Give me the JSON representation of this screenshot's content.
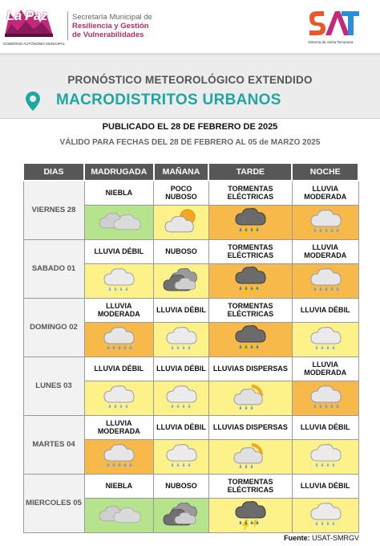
{
  "header": {
    "lapaz_logo_text": "La Paz",
    "lapaz_logo_sub": "GOBIERNO AUTÓNOMO MUNICIPAL",
    "secretaria_line1": "Secretaría Municipal de",
    "secretaria_line2": "Resiliencia y Gestión",
    "secretaria_line3": "de Vulnerabilidades",
    "sat_logo_sub": "Sistema de Alerta Temprana"
  },
  "title": "PRONÓSTICO METEOROLÓGICO EXTENDIDO",
  "subtitle": "MACRODISTRITOS URBANOS",
  "published": "PUBLICADO EL 28 DE FEBRERO DE 2025",
  "valid": "VÁLIDO PARA FECHAS DEL 28  DE FEBRERO AL 05 de MARZO 2025",
  "table": {
    "headers": [
      "DIAS",
      "MADRUGADA",
      "MAÑANA",
      "TARDE",
      "NOCHE"
    ],
    "rows": [
      {
        "day": "VIERNES 28",
        "cells": [
          {
            "label": "NIEBLA",
            "icon": "fog-icon",
            "color": "green"
          },
          {
            "label": "POCO NUBOSO",
            "icon": "partly-cloudy-icon",
            "color": "yellow"
          },
          {
            "label": "TORMENTAS ELÉCTRICAS",
            "icon": "thunderstorm-icon",
            "color": "orange"
          },
          {
            "label": "LLUVIA MODERADA",
            "icon": "rain-icon",
            "color": "orange"
          }
        ]
      },
      {
        "day": "SABADO 01",
        "cells": [
          {
            "label": "LLUVIA DÉBIL",
            "icon": "light-rain-icon",
            "color": "yellow"
          },
          {
            "label": "NUBOSO",
            "icon": "cloudy-icon",
            "color": "yellow"
          },
          {
            "label": "TORMENTAS ELÉCTRICAS",
            "icon": "thunderstorm-icon",
            "color": "orange"
          },
          {
            "label": "LLUVIA MODERADA",
            "icon": "rain-icon",
            "color": "orange"
          }
        ]
      },
      {
        "day": "DOMINGO 02",
        "cells": [
          {
            "label": "LLUVIA MODERADA",
            "icon": "rain-icon",
            "color": "orange"
          },
          {
            "label": "LLUVIA DÉBIL",
            "icon": "light-rain-icon",
            "color": "yellow"
          },
          {
            "label": "TORMENTAS ELÉCTRICAS",
            "icon": "thunderstorm-icon",
            "color": "orange"
          },
          {
            "label": "LLUVIA DÉBIL",
            "icon": "light-rain-icon",
            "color": "yellow"
          }
        ]
      },
      {
        "day": "LUNES 03",
        "cells": [
          {
            "label": "LLUVIA DÉBIL",
            "icon": "light-rain-icon",
            "color": "yellow"
          },
          {
            "label": "LLUVIA DÉBIL",
            "icon": "light-rain-icon",
            "color": "yellow"
          },
          {
            "label": "LLUVIAS DISPERSAS",
            "icon": "scattered-rain-icon",
            "color": "yellow"
          },
          {
            "label": "LLUVIA MODERADA",
            "icon": "rain-icon",
            "color": "orange"
          }
        ]
      },
      {
        "day": "MARTES 04",
        "cells": [
          {
            "label": "LLUVIA MODERADA",
            "icon": "rain-icon",
            "color": "orange"
          },
          {
            "label": "LLUVIA DÉBIL",
            "icon": "light-rain-icon",
            "color": "yellow"
          },
          {
            "label": "LLUVIAS DISPERSAS",
            "icon": "scattered-rain-icon",
            "color": "yellow"
          },
          {
            "label": "LLUVIA DÉBIL",
            "icon": "light-rain-icon",
            "color": "yellow"
          }
        ]
      },
      {
        "day": "MIERCOLES 05",
        "cells": [
          {
            "label": "NIEBLA",
            "icon": "fog-icon",
            "color": "green"
          },
          {
            "label": "NUBOSO",
            "icon": "cloudy-icon",
            "color": "green"
          },
          {
            "label": "TORMENTAS ELÉCTRICAS",
            "icon": "thunderstorm-icon",
            "color": "yellow"
          },
          {
            "label": "LLUVIA DÉBIL",
            "icon": "light-rain-icon",
            "color": "yellow"
          }
        ]
      }
    ]
  },
  "source": {
    "label": "Fuente:",
    "value": "USAT-SMRGV"
  },
  "colors": {
    "green": "#b6e48d",
    "yellow": "#fdf28a",
    "orange": "#f6b94a",
    "header": "#575757",
    "teal": "#1fa6a0",
    "magenta": "#b0306a"
  }
}
